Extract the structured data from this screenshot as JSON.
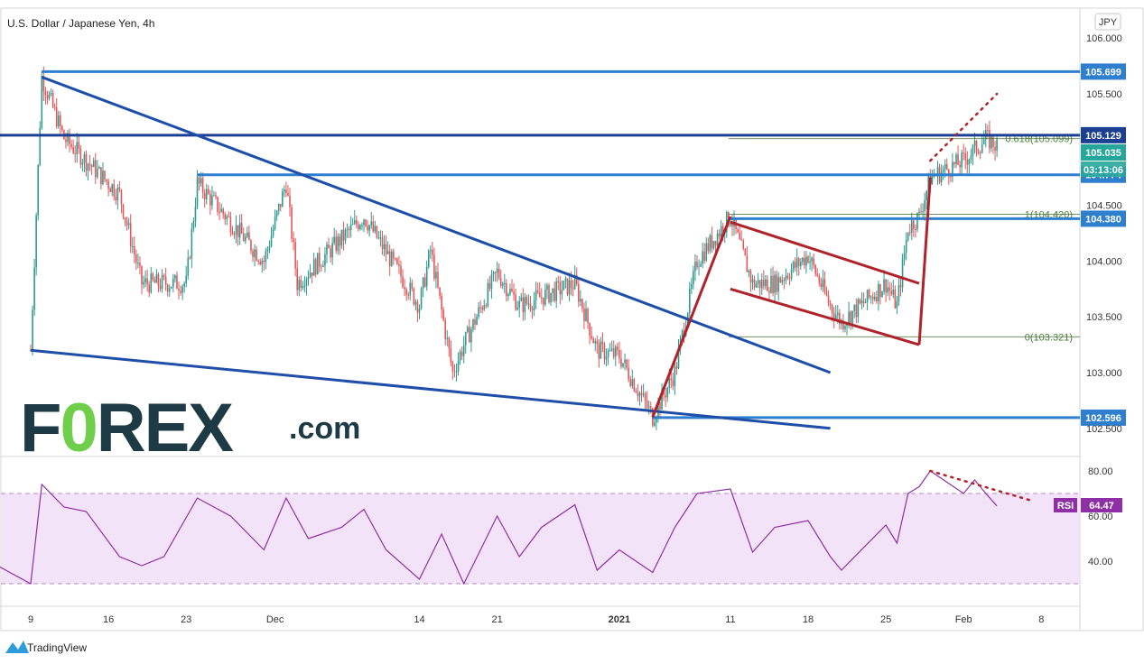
{
  "header": {
    "title": "U.S. Dollar / Japanese Yen, 4h",
    "currency_badge": "JPY"
  },
  "logo": {
    "text": "FOREX",
    "suffix": ".com",
    "o_char": "0",
    "accent_color": "#6fcf4a",
    "color": "#1e3b45"
  },
  "footer": {
    "brand": "TradingView"
  },
  "colors": {
    "up": "#2e9a90",
    "down": "#e0585a",
    "trend_blue": "#1f4ea8",
    "level_blue": "#2f7fcf",
    "channel_red": "#b0232a",
    "rsi_line": "#8e2fa6",
    "rsi_band": "#f3e3f8",
    "fib_green": "#4a7a3a"
  },
  "chart_data": [
    {
      "type": "candlestick",
      "title": "U.S. Dollar / Japanese Yen, 4h",
      "y_unit": "JPY",
      "ylim": [
        102.3,
        106.2
      ],
      "y_ticks": [
        "106.000",
        "105.500",
        "104.500",
        "104.000",
        "103.500",
        "103.000",
        "102.500"
      ],
      "x_ticks": [
        "9",
        "16",
        "23",
        "Dec",
        "14",
        "21",
        "2021",
        "11",
        "18",
        "25",
        "Feb",
        "8"
      ],
      "key_points": [
        {
          "t": "Nov 9",
          "price": 103.2
        },
        {
          "t": "Nov 10",
          "price": 105.65
        },
        {
          "t": "Nov 12",
          "price": 105.1
        },
        {
          "t": "Nov 17",
          "price": 104.6
        },
        {
          "t": "Nov 19",
          "price": 103.8
        },
        {
          "t": "Nov 23",
          "price": 103.8
        },
        {
          "t": "Nov 24",
          "price": 104.7
        },
        {
          "t": "Nov 30",
          "price": 104.0
        },
        {
          "t": "Dec 2",
          "price": 104.7
        },
        {
          "t": "Dec 3",
          "price": 103.8
        },
        {
          "t": "Dec 9",
          "price": 104.4
        },
        {
          "t": "Dec 14",
          "price": 103.6
        },
        {
          "t": "Dec 15",
          "price": 104.1
        },
        {
          "t": "Dec 17",
          "price": 103.0
        },
        {
          "t": "Dec 18",
          "price": 103.25
        },
        {
          "t": "Dec 21",
          "price": 103.9
        },
        {
          "t": "Dec 23",
          "price": 103.6
        },
        {
          "t": "Dec 28",
          "price": 103.8
        },
        {
          "t": "Dec 30",
          "price": 103.2
        },
        {
          "t": "Jan 1",
          "price": 103.15
        },
        {
          "t": "Jan 4",
          "price": 102.6
        },
        {
          "t": "Jan 6",
          "price": 103.0
        },
        {
          "t": "Jan 8",
          "price": 104.0
        },
        {
          "t": "Jan 11",
          "price": 104.4
        },
        {
          "t": "Jan 13",
          "price": 103.8
        },
        {
          "t": "Jan 15",
          "price": 103.8
        },
        {
          "t": "Jan 18",
          "price": 104.05
        },
        {
          "t": "Jan 20",
          "price": 103.6
        },
        {
          "t": "Jan 21",
          "price": 103.45
        },
        {
          "t": "Jan 25",
          "price": 103.8
        },
        {
          "t": "Jan 26",
          "price": 103.6
        },
        {
          "t": "Jan 27",
          "price": 104.3
        },
        {
          "t": "Jan 28",
          "price": 104.4
        },
        {
          "t": "Jan 29",
          "price": 104.75
        },
        {
          "t": "Feb 1",
          "price": 104.9
        },
        {
          "t": "Feb 2",
          "price": 105.0
        },
        {
          "t": "Feb 3",
          "price": 105.1
        },
        {
          "t": "Feb 4",
          "price": 105.035
        }
      ],
      "last_price": "105.035",
      "countdown": "03:13:06",
      "horizontal_levels": [
        {
          "label": "105.699",
          "value": 105.699,
          "from": "Nov 10"
        },
        {
          "label": "105.129",
          "value": 105.129,
          "from": "Nov 2"
        },
        {
          "label": "104.774",
          "value": 104.774,
          "from": "Nov 24"
        },
        {
          "label": "104.380",
          "value": 104.38,
          "from": "Jan 11"
        },
        {
          "label": "102.596",
          "value": 102.596,
          "from": "Jan 4"
        }
      ],
      "fibonacci": [
        {
          "label": "1(104.420)",
          "value": 104.42
        },
        {
          "label": "0.618(105.099)",
          "value": 105.099
        },
        {
          "label": "0(103.321)",
          "value": 103.321
        }
      ],
      "trendlines": [
        {
          "name": "falling wedge upper",
          "from": {
            "t": "Nov 10",
            "price": 105.65
          },
          "to": {
            "t": "Jan 20",
            "price": 103.0
          }
        },
        {
          "name": "falling wedge lower",
          "from": {
            "t": "Nov 9",
            "price": 103.2
          },
          "to": {
            "t": "Jan 20",
            "price": 102.5
          }
        }
      ],
      "channel": [
        {
          "from": {
            "t": "Jan 11",
            "price": 104.35
          },
          "to": {
            "t": "Jan 28",
            "price": 103.8
          }
        },
        {
          "from": {
            "t": "Jan 11",
            "price": 103.75
          },
          "to": {
            "t": "Jan 28",
            "price": 103.25
          }
        }
      ]
    },
    {
      "type": "line",
      "title": "RSI",
      "series": [
        {
          "name": "RSI",
          "last_value": "64.47"
        }
      ],
      "ylim": [
        25,
        85
      ],
      "y_ticks": [
        "80.00",
        "60.00",
        "40.00"
      ],
      "band": [
        30,
        70
      ],
      "points": [
        {
          "t": "Nov 6",
          "v": 38
        },
        {
          "t": "Nov 9",
          "v": 30
        },
        {
          "t": "Nov 10",
          "v": 74
        },
        {
          "t": "Nov 12",
          "v": 64
        },
        {
          "t": "Nov 14",
          "v": 62
        },
        {
          "t": "Nov 17",
          "v": 42
        },
        {
          "t": "Nov 19",
          "v": 38
        },
        {
          "t": "Nov 21",
          "v": 42
        },
        {
          "t": "Nov 24",
          "v": 68
        },
        {
          "t": "Nov 27",
          "v": 60
        },
        {
          "t": "Nov 30",
          "v": 45
        },
        {
          "t": "Dec 2",
          "v": 68
        },
        {
          "t": "Dec 4",
          "v": 50
        },
        {
          "t": "Dec 7",
          "v": 55
        },
        {
          "t": "Dec 9",
          "v": 63
        },
        {
          "t": "Dec 11",
          "v": 45
        },
        {
          "t": "Dec 14",
          "v": 32
        },
        {
          "t": "Dec 16",
          "v": 52
        },
        {
          "t": "Dec 18",
          "v": 30
        },
        {
          "t": "Dec 21",
          "v": 60
        },
        {
          "t": "Dec 23",
          "v": 42
        },
        {
          "t": "Dec 25",
          "v": 55
        },
        {
          "t": "Dec 28",
          "v": 65
        },
        {
          "t": "Dec 30",
          "v": 36
        },
        {
          "t": "Jan 1",
          "v": 45
        },
        {
          "t": "Jan 4",
          "v": 35
        },
        {
          "t": "Jan 6",
          "v": 55
        },
        {
          "t": "Jan 8",
          "v": 70
        },
        {
          "t": "Jan 11",
          "v": 72
        },
        {
          "t": "Jan 13",
          "v": 44
        },
        {
          "t": "Jan 15",
          "v": 55
        },
        {
          "t": "Jan 18",
          "v": 58
        },
        {
          "t": "Jan 20",
          "v": 42
        },
        {
          "t": "Jan 21",
          "v": 36
        },
        {
          "t": "Jan 25",
          "v": 56
        },
        {
          "t": "Jan 26",
          "v": 48
        },
        {
          "t": "Jan 27",
          "v": 70
        },
        {
          "t": "Jan 28",
          "v": 73
        },
        {
          "t": "Jan 29",
          "v": 80
        },
        {
          "t": "Feb 1",
          "v": 70
        },
        {
          "t": "Feb 2",
          "v": 76
        },
        {
          "t": "Feb 3",
          "v": 70
        },
        {
          "t": "Feb 4",
          "v": 64.47
        }
      ]
    }
  ]
}
